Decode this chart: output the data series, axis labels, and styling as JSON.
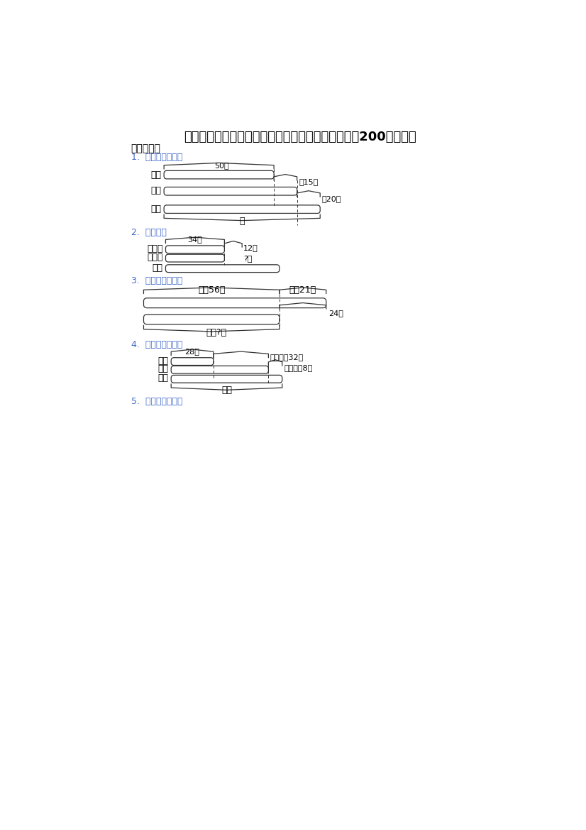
{
  "title": "苏教版精选小学三年级数学上册期末复习试卷应用题200道和答案",
  "section1": "一、选择题",
  "q1_label": "1.  看图列式解答。",
  "q2_label": "2.  列算式。",
  "q3_label": "3.  看图列式计算。",
  "q4_label": "4.  看图列式解答。",
  "q5_label": "5.  看图列式解答。",
  "bg_color": "#ffffff",
  "text_color": "#000000",
  "blue_color": "#4169cd",
  "line_color": "#333333",
  "dpi": 100
}
